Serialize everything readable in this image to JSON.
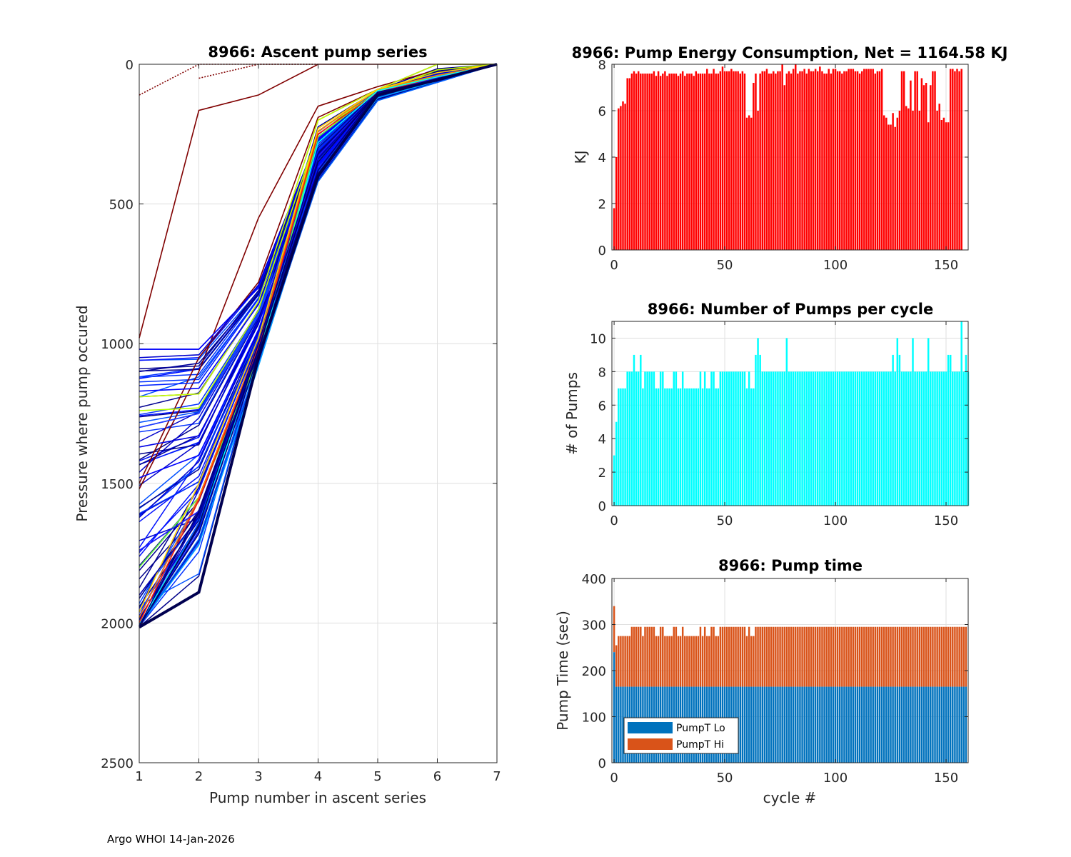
{
  "footer": "Argo WHOI 14-Jan-2026",
  "chart_data": [
    {
      "id": "ascent",
      "type": "line",
      "title": "8966: Ascent pump series",
      "xlabel": "Pump number in ascent series",
      "ylabel": "Pressure where pump occured",
      "xlim": [
        1,
        7
      ],
      "ylim": [
        0,
        2500
      ],
      "y_reversed": true,
      "xticks": [
        "1",
        "2",
        "3",
        "4",
        "5",
        "6",
        "7"
      ],
      "yticks": [
        "0",
        "500",
        "1000",
        "1500",
        "2000",
        "2500"
      ],
      "grid": true,
      "colormap": "jet (by cycle)",
      "series": [
        {
          "name": "early-a",
          "color": "#800000",
          "dotted": false,
          "x": [
            1,
            2,
            3,
            4,
            5,
            6,
            7
          ],
          "y": [
            980,
            165,
            110,
            0,
            0,
            0,
            0
          ]
        },
        {
          "name": "early-b",
          "color": "#800000",
          "dotted": true,
          "x": [
            1,
            2,
            3,
            4
          ],
          "y": [
            110,
            0,
            0,
            0
          ]
        },
        {
          "name": "early-c",
          "color": "#800000",
          "dotted": true,
          "x": [
            2,
            3,
            4
          ],
          "y": [
            50,
            0,
            0
          ]
        },
        {
          "name": "early-d",
          "color": "#800000",
          "dotted": false,
          "x": [
            1,
            2,
            3,
            4,
            5,
            6,
            7
          ],
          "y": [
            1520,
            1100,
            550,
            150,
            80,
            20,
            0
          ]
        },
        {
          "name": "early-e",
          "color": "#800000",
          "dotted": false,
          "x": [
            1,
            2,
            3,
            4,
            5,
            6,
            7
          ],
          "y": [
            1500,
            1050,
            780,
            190,
            90,
            30,
            0
          ]
        },
        {
          "name": "s1",
          "color": "#0000ff",
          "x": [
            1,
            2,
            3,
            4,
            5,
            6,
            7
          ],
          "y": [
            1020,
            1020,
            800,
            270,
            100,
            60,
            0
          ]
        },
        {
          "name": "s2",
          "color": "#0000cc",
          "x": [
            1,
            2,
            3,
            4,
            5,
            6,
            7
          ],
          "y": [
            1050,
            1040,
            790,
            260,
            100,
            55,
            0
          ]
        },
        {
          "name": "s3",
          "color": "#000099",
          "x": [
            1,
            2,
            3,
            4,
            5,
            6,
            7
          ],
          "y": [
            1100,
            1070,
            820,
            300,
            95,
            50,
            0
          ]
        },
        {
          "name": "s4",
          "color": "#0022ff",
          "x": [
            1,
            2,
            3,
            4,
            5,
            6,
            7
          ],
          "y": [
            1150,
            1140,
            840,
            310,
            100,
            50,
            0
          ]
        },
        {
          "name": "s5",
          "color": "#c8ff00",
          "x": [
            1,
            2,
            3,
            4,
            5,
            6,
            7
          ],
          "y": [
            1190,
            1180,
            850,
            200,
            90,
            0,
            0
          ]
        },
        {
          "name": "s6",
          "color": "#0000ff",
          "x": [
            1,
            2,
            3,
            4,
            5,
            6,
            7
          ],
          "y": [
            1170,
            1160,
            860,
            320,
            110,
            60,
            0
          ]
        },
        {
          "name": "s7",
          "color": "#b4ff00",
          "x": [
            1,
            2,
            3,
            4,
            5,
            6,
            7
          ],
          "y": [
            1240,
            1230,
            880,
            240,
            100,
            20,
            0
          ]
        },
        {
          "name": "s8",
          "color": "#1e3cff",
          "x": [
            1,
            2,
            3,
            4,
            5,
            6,
            7
          ],
          "y": [
            1300,
            1250,
            900,
            350,
            110,
            60,
            0
          ]
        },
        {
          "name": "s9",
          "color": "#0000e6",
          "x": [
            1,
            2,
            3,
            4,
            5,
            6,
            7
          ],
          "y": [
            1370,
            1330,
            920,
            380,
            110,
            60,
            0
          ]
        },
        {
          "name": "s10",
          "color": "#0000ff",
          "x": [
            1,
            2,
            3,
            4,
            5,
            6,
            7
          ],
          "y": [
            1480,
            1400,
            950,
            360,
            100,
            55,
            0
          ]
        },
        {
          "name": "s11",
          "color": "#66ff33",
          "x": [
            1,
            2,
            3,
            4,
            5,
            6,
            7
          ],
          "y": [
            1800,
            1550,
            1050,
            260,
            95,
            40,
            0
          ]
        },
        {
          "name": "s12",
          "color": "#ff8000",
          "x": [
            1,
            2,
            3,
            4,
            5,
            6,
            7
          ],
          "y": [
            1980,
            1550,
            1000,
            240,
            90,
            40,
            0
          ]
        },
        {
          "name": "s13",
          "color": "#ffd400",
          "x": [
            1,
            2,
            3,
            4,
            5,
            6,
            7
          ],
          "y": [
            1960,
            1500,
            980,
            230,
            90,
            30,
            0
          ]
        },
        {
          "name": "s14",
          "color": "#ff2000",
          "x": [
            1,
            2,
            3,
            4,
            5,
            6,
            7
          ],
          "y": [
            2000,
            1560,
            1010,
            250,
            100,
            45,
            0
          ]
        },
        {
          "name": "s15",
          "color": "#00ffff",
          "x": [
            1,
            2,
            3,
            4,
            5,
            6,
            7
          ],
          "y": [
            2005,
            1650,
            1050,
            280,
            95,
            45,
            0
          ]
        },
        {
          "name": "s16",
          "color": "#00a0ff",
          "x": [
            1,
            2,
            3,
            4,
            5,
            6,
            7
          ],
          "y": [
            2010,
            1720,
            1080,
            400,
            120,
            60,
            0
          ]
        },
        {
          "name": "s17",
          "color": "#0060ff",
          "x": [
            1,
            2,
            3,
            4,
            5,
            6,
            7
          ],
          "y": [
            2010,
            1700,
            1060,
            420,
            130,
            65,
            0
          ]
        },
        {
          "name": "s18",
          "color": "#1a1aff",
          "x": [
            1,
            2,
            3,
            4,
            5,
            6,
            7
          ],
          "y": [
            1740,
            1600,
            1000,
            330,
            100,
            55,
            0
          ]
        },
        {
          "name": "s19",
          "color": "#0000b3",
          "x": [
            1,
            2,
            3,
            4,
            5,
            6,
            7
          ],
          "y": [
            1900,
            1620,
            1020,
            340,
            100,
            55,
            0
          ]
        },
        {
          "name": "s20",
          "color": "#000080",
          "x": [
            1,
            2,
            3,
            4,
            5,
            6,
            7
          ],
          "y": [
            2010,
            1600,
            1000,
            320,
            100,
            60,
            0
          ]
        },
        {
          "name": "s21",
          "color": "#000066",
          "x": [
            1,
            2,
            3,
            4,
            5,
            6,
            7
          ],
          "y": [
            2015,
            1650,
            1020,
            350,
            100,
            55,
            0
          ]
        },
        {
          "name": "s22",
          "color": "#00007a",
          "x": [
            1,
            2,
            3,
            4,
            5,
            6,
            7
          ],
          "y": [
            2010,
            1680,
            1040,
            380,
            100,
            55,
            0
          ]
        },
        {
          "name": "s23",
          "color": "#000050",
          "x": [
            1,
            2,
            3,
            4,
            5,
            6,
            7
          ],
          "y": [
            2015,
            1890,
            1050,
            400,
            110,
            55,
            0
          ]
        }
      ]
    },
    {
      "id": "energy",
      "type": "bar",
      "title": "8966: Pump Energy Consumption,  Net = 1164.58 KJ",
      "net_energy_kj": 1164.58,
      "xlabel": "",
      "ylabel": "KJ",
      "xlim": [
        -1,
        160
      ],
      "ylim": [
        0,
        8
      ],
      "xticks": [
        "0",
        "50",
        "100",
        "150"
      ],
      "yticks": [
        "0",
        "2",
        "4",
        "6",
        "8"
      ],
      "color": "#ff0000",
      "grid": true,
      "values": [
        1.8,
        4.0,
        6.1,
        6.2,
        6.4,
        6.3,
        7.4,
        7.4,
        7.6,
        7.7,
        7.6,
        7.7,
        7.6,
        7.6,
        7.6,
        7.6,
        7.6,
        7.6,
        7.7,
        7.5,
        7.7,
        7.5,
        7.6,
        7.7,
        7.5,
        7.6,
        7.6,
        7.6,
        7.6,
        7.5,
        7.6,
        7.7,
        7.5,
        7.6,
        7.6,
        7.6,
        7.5,
        7.7,
        7.6,
        7.6,
        7.6,
        7.6,
        7.8,
        7.6,
        7.6,
        7.8,
        7.6,
        7.6,
        7.7,
        7.9,
        7.7,
        7.7,
        7.7,
        7.8,
        7.7,
        7.7,
        7.7,
        7.6,
        7.7,
        7.6,
        5.7,
        5.8,
        5.7,
        7.2,
        7.6,
        6.0,
        7.6,
        7.7,
        7.7,
        7.8,
        7.6,
        7.6,
        7.7,
        7.6,
        7.7,
        7.7,
        8.0,
        7.1,
        7.6,
        7.7,
        7.6,
        7.8,
        8.0,
        7.6,
        7.7,
        7.7,
        7.8,
        7.6,
        7.8,
        7.7,
        7.7,
        7.8,
        7.7,
        7.9,
        7.7,
        7.6,
        7.6,
        7.8,
        7.6,
        7.8,
        7.8,
        7.7,
        7.7,
        7.6,
        7.7,
        7.7,
        7.8,
        7.8,
        7.8,
        7.7,
        7.7,
        7.6,
        7.7,
        7.8,
        7.8,
        7.8,
        7.8,
        7.8,
        7.6,
        7.7,
        7.7,
        7.8,
        5.8,
        5.7,
        5.4,
        5.4,
        5.9,
        5.3,
        5.7,
        6.0,
        7.7,
        7.7,
        6.2,
        6.1,
        7.3,
        6.0,
        7.7,
        7.7,
        6.0,
        7.4,
        7.1,
        7.2,
        5.5,
        7.1,
        7.7,
        7.7,
        6.0,
        6.3,
        5.6,
        5.7,
        5.5,
        5.5,
        7.8,
        7.8,
        7.7,
        7.8,
        7.7,
        7.8
      ]
    },
    {
      "id": "pumps",
      "type": "bar",
      "title": "8966: Number of Pumps per cycle",
      "xlabel": "",
      "ylabel": "# of Pumps",
      "xlim": [
        -1,
        160
      ],
      "ylim": [
        0,
        11
      ],
      "xticks": [
        "0",
        "50",
        "100",
        "150"
      ],
      "yticks": [
        "0",
        "2",
        "4",
        "6",
        "8",
        "10"
      ],
      "color": "#00ffff",
      "grid": true,
      "values": [
        3,
        5,
        7,
        7,
        7,
        7,
        8,
        8,
        8,
        9,
        8,
        8,
        9,
        7,
        8,
        8,
        8,
        8,
        8,
        7,
        7,
        8,
        8,
        7,
        7,
        7,
        7,
        8,
        8,
        7,
        7,
        8,
        7,
        7,
        7,
        7,
        7,
        7,
        7,
        8,
        7,
        8,
        7,
        7,
        8,
        8,
        7,
        7,
        8,
        8,
        8,
        8,
        8,
        8,
        8,
        8,
        8,
        8,
        8,
        8,
        7,
        8,
        7,
        7,
        9,
        10,
        9,
        8,
        8,
        8,
        8,
        8,
        8,
        8,
        8,
        8,
        8,
        8,
        10,
        8,
        8,
        8,
        8,
        8,
        8,
        8,
        8,
        8,
        8,
        8,
        8,
        8,
        8,
        8,
        8,
        8,
        8,
        8,
        8,
        8,
        8,
        8,
        8,
        8,
        8,
        8,
        8,
        8,
        8,
        8,
        8,
        8,
        8,
        8,
        8,
        8,
        8,
        8,
        8,
        8,
        8,
        8,
        8,
        8,
        8,
        8,
        9,
        8,
        10,
        9,
        8,
        8,
        8,
        8,
        8,
        10,
        8,
        8,
        8,
        8,
        8,
        8,
        10,
        8,
        8,
        8,
        8,
        8,
        8,
        8,
        8,
        9,
        9,
        8,
        8,
        8,
        8,
        11,
        8,
        9,
        8
      ]
    },
    {
      "id": "pumptime",
      "type": "bar",
      "stacked": true,
      "title": "8966: Pump time",
      "xlabel": "cycle #",
      "ylabel": "Pump Time (sec)",
      "xlim": [
        -1,
        160
      ],
      "ylim": [
        0,
        400
      ],
      "xticks": [
        "0",
        "50",
        "100",
        "150"
      ],
      "yticks": [
        "0",
        "100",
        "200",
        "300",
        "400"
      ],
      "grid": true,
      "legend": {
        "position": "bottom-left",
        "entries": [
          "PumpT Lo",
          "PumpT Hi"
        ]
      },
      "series": [
        {
          "name": "PumpT Lo",
          "color": "#0072bd",
          "values_note": "cycle 0 = 240, cycles 1-159 = 165"
        },
        {
          "name": "PumpT Hi",
          "color": "#d95319",
          "total_values": [
            340,
            255,
            275,
            275,
            275,
            275,
            275,
            275,
            295,
            295,
            295,
            295,
            295,
            275,
            295,
            295,
            295,
            295,
            295,
            275,
            275,
            295,
            295,
            275,
            275,
            275,
            275,
            295,
            295,
            275,
            275,
            295,
            275,
            275,
            275,
            275,
            275,
            275,
            275,
            295,
            275,
            295,
            275,
            275,
            295,
            295,
            275,
            275,
            295,
            295,
            295,
            295,
            295,
            295,
            295,
            295,
            295,
            295,
            295,
            295,
            275,
            295,
            275,
            275,
            295,
            295,
            295,
            295,
            295,
            295,
            295,
            295,
            295,
            295,
            295,
            295,
            295,
            295,
            295,
            295,
            295,
            295,
            295,
            295,
            295,
            295,
            295,
            295,
            295,
            295,
            295,
            295,
            295,
            295,
            295,
            295,
            295,
            295,
            295,
            295,
            295,
            295,
            295,
            295,
            295,
            295,
            295,
            295,
            295,
            295,
            295,
            295,
            295,
            295,
            295,
            295,
            295,
            295,
            295,
            295,
            295,
            295,
            295,
            295,
            295,
            295,
            295,
            295,
            295,
            295,
            295,
            295,
            295,
            295,
            295,
            295,
            295,
            295,
            295,
            295,
            295,
            295,
            295,
            295,
            295,
            295,
            295,
            295,
            295,
            295,
            295,
            295,
            295,
            295,
            295,
            295,
            295,
            295,
            295,
            295
          ]
        }
      ],
      "lo_values_first": 240,
      "lo_values_rest": 165
    }
  ]
}
